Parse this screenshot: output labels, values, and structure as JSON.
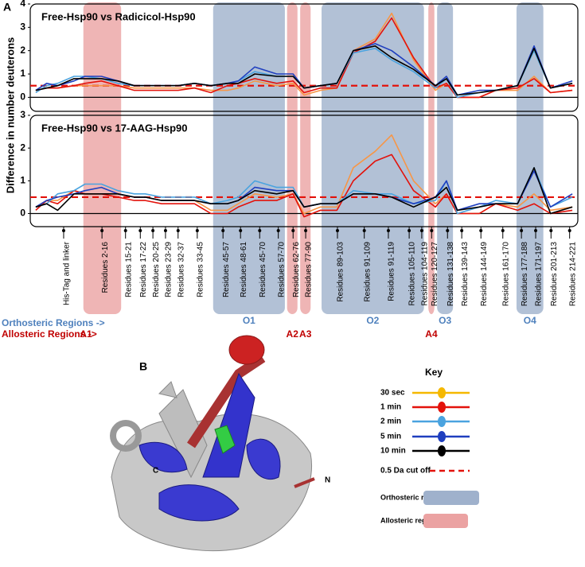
{
  "panel_a_label": "A",
  "panel_b_label": "B",
  "y_label": "Difference in number deuterons",
  "chart_data": [
    {
      "type": "line",
      "title": "Free-Hsp90 vs Radicicol-Hsp90",
      "x": [
        1,
        3,
        5,
        8,
        10,
        13,
        16,
        19,
        21,
        24,
        27,
        30,
        33,
        36,
        38,
        41,
        45,
        48,
        50,
        53,
        56,
        59,
        63,
        66,
        70,
        74,
        76,
        78,
        82,
        85,
        89,
        92,
        95,
        99
      ],
      "xlim": [
        0,
        100
      ],
      "ylim": [
        -0.6,
        4
      ],
      "yticks": [
        0,
        1,
        2,
        3,
        4
      ],
      "threshold": 0.5,
      "threshold_color": "#e3120b",
      "series": [
        {
          "name": "30 sec",
          "color": "#f79646",
          "values": [
            0.3,
            0.4,
            0.4,
            0.5,
            0.5,
            0.5,
            0.5,
            0.4,
            0.4,
            0.4,
            0.4,
            0.4,
            0.3,
            0.3,
            0.4,
            0.7,
            0.5,
            0.6,
            0.1,
            0.3,
            0.4,
            2.0,
            2.5,
            3.6,
            1.6,
            0.3,
            0.6,
            0.0,
            0.0,
            0.3,
            0.3,
            0.9,
            0.2,
            0.3
          ]
        },
        {
          "name": "1 min",
          "color": "#e3120b",
          "values": [
            0.3,
            0.4,
            0.4,
            0.5,
            0.6,
            0.7,
            0.5,
            0.3,
            0.3,
            0.3,
            0.3,
            0.4,
            0.2,
            0.5,
            0.6,
            0.8,
            0.6,
            0.7,
            0.2,
            0.4,
            0.4,
            1.9,
            2.4,
            3.4,
            1.7,
            0.4,
            0.6,
            0.0,
            0.0,
            0.3,
            0.4,
            0.8,
            0.2,
            0.3
          ]
        },
        {
          "name": "2 min",
          "color": "#4aa3df",
          "values": [
            0.2,
            0.5,
            0.6,
            0.9,
            0.9,
            0.8,
            0.6,
            0.5,
            0.5,
            0.5,
            0.5,
            0.6,
            0.5,
            0.6,
            0.7,
            1.1,
            0.9,
            0.9,
            0.4,
            0.5,
            0.6,
            1.9,
            2.1,
            1.6,
            1.1,
            0.4,
            0.8,
            0.0,
            0.2,
            0.3,
            0.5,
            2.0,
            0.4,
            0.6
          ]
        },
        {
          "name": "5 min",
          "color": "#1f3fbf",
          "values": [
            0.3,
            0.6,
            0.5,
            0.7,
            0.9,
            0.9,
            0.7,
            0.5,
            0.5,
            0.5,
            0.5,
            0.6,
            0.5,
            0.6,
            0.7,
            1.3,
            1.0,
            1.0,
            0.4,
            0.5,
            0.6,
            2.0,
            2.3,
            2.0,
            1.3,
            0.5,
            0.9,
            0.1,
            0.3,
            0.3,
            0.5,
            2.2,
            0.4,
            0.7
          ]
        },
        {
          "name": "10 min",
          "color": "#000000",
          "values": [
            0.3,
            0.4,
            0.5,
            0.8,
            0.8,
            0.8,
            0.7,
            0.5,
            0.5,
            0.5,
            0.5,
            0.6,
            0.5,
            0.6,
            0.6,
            1.0,
            0.9,
            0.9,
            0.4,
            0.5,
            0.6,
            2.0,
            2.2,
            1.7,
            1.2,
            0.5,
            0.8,
            0.1,
            0.2,
            0.3,
            0.5,
            2.1,
            0.4,
            0.6
          ]
        }
      ]
    },
    {
      "type": "line",
      "title": "Free-Hsp90 vs 17-AAG-Hsp90",
      "x": [
        1,
        3,
        5,
        8,
        10,
        13,
        16,
        19,
        21,
        24,
        27,
        30,
        33,
        36,
        38,
        41,
        45,
        48,
        50,
        53,
        56,
        59,
        63,
        66,
        70,
        74,
        76,
        78,
        82,
        85,
        89,
        92,
        95,
        99
      ],
      "xlim": [
        0,
        100
      ],
      "ylim": [
        -0.4,
        3
      ],
      "yticks": [
        0,
        1,
        2,
        3
      ],
      "threshold": 0.5,
      "threshold_color": "#e3120b",
      "xticks": [
        {
          "value": 6.1,
          "label": "His-Tag and linker"
        },
        {
          "value": 13.1,
          "label": "Residues 2-16"
        },
        {
          "value": 17.4,
          "label": "Residues 15-21"
        },
        {
          "value": 20.1,
          "label": "Residues 17-22"
        },
        {
          "value": 22.4,
          "label": "Residues 20-25"
        },
        {
          "value": 24.7,
          "label": "Residues 23-29"
        },
        {
          "value": 27.0,
          "label": "Residues 32-37"
        },
        {
          "value": 30.5,
          "label": "Residues 33-45"
        },
        {
          "value": 35.2,
          "label": "Residues 45-57"
        },
        {
          "value": 38.4,
          "label": "Residues 48-61"
        },
        {
          "value": 41.9,
          "label": "Residues 45-70"
        },
        {
          "value": 45.3,
          "label": "Residues 57-70"
        },
        {
          "value": 48.0,
          "label": "Residues 62-76"
        },
        {
          "value": 50.3,
          "label": "Residues 77-90"
        },
        {
          "value": 56.1,
          "label": "Residues 89-103"
        },
        {
          "value": 61.0,
          "label": "Residues 91-109"
        },
        {
          "value": 65.4,
          "label": "Residues 91-119"
        },
        {
          "value": 69.2,
          "label": "Residues 105-110"
        },
        {
          "value": 71.5,
          "label": "Residues 104-119"
        },
        {
          "value": 73.3,
          "label": "Residues 120-127"
        },
        {
          "value": 76.2,
          "label": "Residues 131-138"
        },
        {
          "value": 78.8,
          "label": "Residues 139-143"
        },
        {
          "value": 82.3,
          "label": "Residues 144-149"
        },
        {
          "value": 86.3,
          "label": "Residues 161-170"
        },
        {
          "value": 89.7,
          "label": "Residues 177-188"
        },
        {
          "value": 92.3,
          "label": "Residues 171-197"
        },
        {
          "value": 95.1,
          "label": "Residues 201-213"
        },
        {
          "value": 98.5,
          "label": "Residues 214-221"
        }
      ],
      "series": [
        {
          "name": "30 sec",
          "color": "#f79646",
          "values": [
            0.2,
            0.4,
            0.4,
            0.7,
            0.6,
            0.6,
            0.6,
            0.5,
            0.5,
            0.4,
            0.4,
            0.4,
            0.1,
            0.1,
            0.3,
            0.6,
            0.5,
            0.6,
            0.0,
            0.2,
            0.2,
            1.4,
            1.9,
            2.4,
            1.0,
            0.3,
            0.6,
            0.0,
            0.0,
            0.3,
            0.2,
            0.6,
            0.1,
            0.2
          ]
        },
        {
          "name": "1 min",
          "color": "#e3120b",
          "values": [
            0.1,
            0.4,
            0.3,
            0.7,
            0.6,
            0.6,
            0.5,
            0.4,
            0.4,
            0.3,
            0.3,
            0.3,
            0.0,
            0.0,
            0.2,
            0.4,
            0.4,
            0.6,
            -0.1,
            0.1,
            0.1,
            1.0,
            1.6,
            1.8,
            0.7,
            0.2,
            0.6,
            0.0,
            0.0,
            0.3,
            0.1,
            0.3,
            0.0,
            0.1
          ]
        },
        {
          "name": "2 min",
          "color": "#4aa3df",
          "values": [
            0.2,
            0.3,
            0.6,
            0.7,
            0.9,
            0.9,
            0.7,
            0.6,
            0.6,
            0.5,
            0.5,
            0.5,
            0.3,
            0.4,
            0.5,
            1.0,
            0.8,
            0.8,
            0.2,
            0.3,
            0.3,
            0.7,
            0.6,
            0.6,
            0.3,
            0.4,
            1.0,
            0.0,
            0.2,
            0.4,
            0.3,
            1.4,
            0.2,
            0.5
          ]
        },
        {
          "name": "5 min",
          "color": "#1f3fbf",
          "values": [
            0.2,
            0.4,
            0.5,
            0.6,
            0.7,
            0.8,
            0.6,
            0.5,
            0.5,
            0.4,
            0.4,
            0.4,
            0.3,
            0.3,
            0.4,
            0.8,
            0.7,
            0.7,
            0.2,
            0.3,
            0.3,
            0.6,
            0.6,
            0.5,
            0.3,
            0.5,
            1.0,
            0.1,
            0.3,
            0.3,
            0.3,
            1.3,
            0.2,
            0.6
          ]
        },
        {
          "name": "10 min",
          "color": "#000000",
          "values": [
            0.2,
            0.3,
            0.1,
            0.6,
            0.6,
            0.6,
            0.6,
            0.5,
            0.5,
            0.4,
            0.4,
            0.4,
            0.3,
            0.3,
            0.4,
            0.7,
            0.6,
            0.7,
            0.2,
            0.3,
            0.3,
            0.6,
            0.6,
            0.5,
            0.2,
            0.5,
            0.8,
            0.1,
            0.2,
            0.3,
            0.3,
            1.4,
            0.0,
            0.2
          ]
        }
      ]
    }
  ],
  "orthosteric_regions": {
    "label": "Orthosteric Regions ->",
    "color": "#9fb1cc",
    "text_color": "#4f81bd",
    "ranges": [
      [
        33.4,
        46.5
      ],
      [
        53.2,
        71.9
      ],
      [
        74.3,
        77.2
      ],
      [
        88.8,
        93.7
      ]
    ],
    "names": [
      "O1",
      "O2",
      "O3",
      "O4"
    ]
  },
  "allosteric_regions": {
    "label": "Allosteric Regions ->",
    "color": "#eba2a2",
    "text_color": "#c00000",
    "ranges": [
      [
        9.7,
        16.6
      ],
      [
        46.9,
        48.8
      ],
      [
        49.3,
        51.2
      ],
      [
        72.7,
        73.8
      ]
    ],
    "names": [
      "A1",
      "A2",
      "A3",
      "A4"
    ]
  },
  "key": {
    "title": "Key",
    "threshold_label": "0.5 Da cut off",
    "orthosteric_label": "Orthosteric regions",
    "allosteric_label": "Allosteric regions"
  },
  "structure": {
    "c_label": "C",
    "n_label": "N"
  }
}
